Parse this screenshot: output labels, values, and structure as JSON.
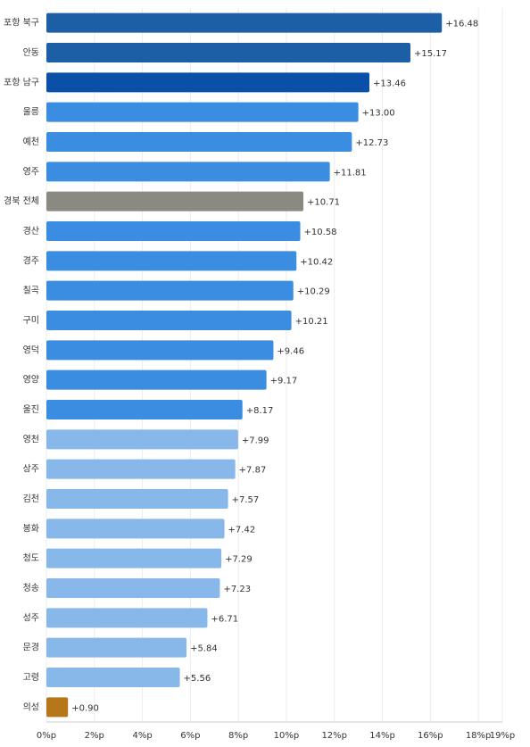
{
  "chart_data": {
    "type": "barh",
    "categories": [
      "포항 북구",
      "안동",
      "포항 남구",
      "울릉",
      "예천",
      "영주",
      "경북 전체",
      "경산",
      "경주",
      "칠곡",
      "구미",
      "영덕",
      "영양",
      "울진",
      "영천",
      "상주",
      "김천",
      "봉화",
      "청도",
      "청송",
      "성주",
      "문경",
      "고령",
      "의성"
    ],
    "values": [
      16.48,
      15.17,
      13.46,
      13.0,
      12.73,
      11.81,
      10.71,
      10.58,
      10.42,
      10.29,
      10.21,
      9.46,
      9.17,
      8.17,
      7.99,
      7.87,
      7.57,
      7.42,
      7.29,
      7.23,
      6.71,
      5.84,
      5.56,
      0.9
    ],
    "value_labels": [
      "+16.48",
      "+15.17",
      "+13.46",
      "+13.00",
      "+12.73",
      "+11.81",
      "+10.71",
      "+10.58",
      "+10.42",
      "+10.29",
      "+10.21",
      "+9.46",
      "+9.17",
      "+8.17",
      "+7.99",
      "+7.87",
      "+7.57",
      "+7.42",
      "+7.29",
      "+7.23",
      "+6.71",
      "+5.84",
      "+5.56",
      "+0.90"
    ],
    "colors": [
      "#1c5fa6",
      "#1c5fa6",
      "#0a50a8",
      "#3a8de0",
      "#3a8de0",
      "#3a8de0",
      "#8a8a82",
      "#3a8de0",
      "#3a8de0",
      "#3a8de0",
      "#3a8de0",
      "#3a8de0",
      "#3a8de0",
      "#3a8de0",
      "#88b7ea",
      "#88b7ea",
      "#88b7ea",
      "#88b7ea",
      "#88b7ea",
      "#88b7ea",
      "#88b7ea",
      "#88b7ea",
      "#88b7ea",
      "#b8761a"
    ],
    "xlim": [
      0,
      19
    ],
    "xticks": [
      {
        "value": 0,
        "label": "0%p"
      },
      {
        "value": 2,
        "label": "2%p"
      },
      {
        "value": 4,
        "label": "4%p"
      },
      {
        "value": 6,
        "label": "6%p"
      },
      {
        "value": 8,
        "label": "8%p"
      },
      {
        "value": 10,
        "label": "10%p"
      },
      {
        "value": 12,
        "label": "12%p"
      },
      {
        "value": 14,
        "label": "14%p"
      },
      {
        "value": 16,
        "label": "16%p"
      },
      {
        "value": 18,
        "label": "18%p"
      },
      {
        "value": 19,
        "label": "19%p"
      }
    ],
    "grid": true
  }
}
